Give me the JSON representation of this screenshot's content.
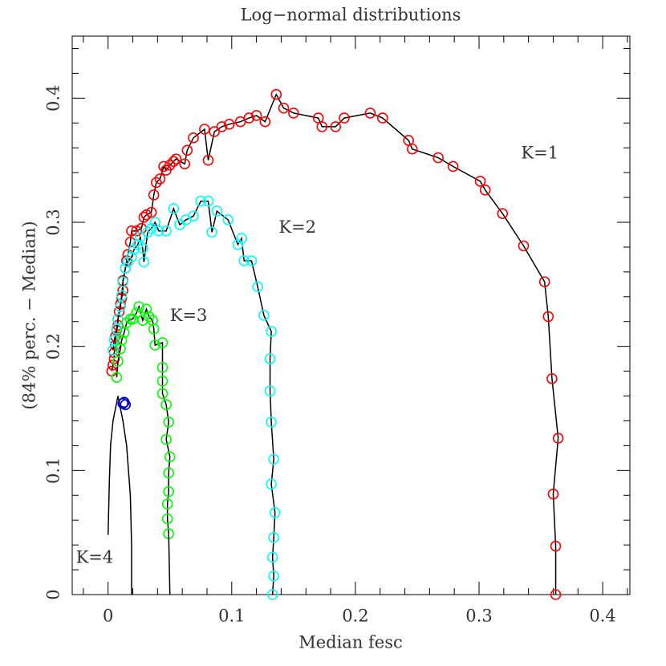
{
  "chart_data": {
    "type": "scatter",
    "title": "Log−normal distributions",
    "xlabel": "Median fesc",
    "ylabel": "(84% perc. − Median)",
    "xlim": [
      -0.029,
      0.422
    ],
    "ylim": [
      0,
      0.45
    ],
    "xticks": [
      0,
      0.1,
      0.2,
      0.3,
      0.4
    ],
    "yticks": [
      0,
      0.1,
      0.2,
      0.3,
      0.4
    ],
    "xminor": [
      -0.02,
      0.02,
      0.04,
      0.06,
      0.08,
      0.12,
      0.14,
      0.16,
      0.18,
      0.22,
      0.24,
      0.26,
      0.28,
      0.32,
      0.34,
      0.36,
      0.38,
      0.42
    ],
    "yminor": [
      0.02,
      0.04,
      0.06,
      0.08,
      0.12,
      0.14,
      0.16,
      0.18,
      0.22,
      0.24,
      0.26,
      0.28,
      0.32,
      0.34,
      0.36,
      0.38,
      0.42,
      0.44
    ],
    "series": [
      {
        "name": "K=1",
        "label_x": 0.334,
        "label_y": 0.355,
        "color": "#ff0000",
        "line_color": "#000000",
        "markers": true,
        "x": [
          0.003,
          0.004,
          0.005,
          0.005,
          0.006,
          0.006,
          0.007,
          0.008,
          0.008,
          0.009,
          0.01,
          0.011,
          0.012,
          0.012,
          0.014,
          0.015,
          0.016,
          0.018,
          0.019,
          0.023,
          0.027,
          0.029,
          0.031,
          0.035,
          0.037,
          0.039,
          0.042,
          0.045,
          0.047,
          0.05,
          0.053,
          0.055,
          0.062,
          0.064,
          0.069,
          0.078,
          0.081,
          0.086,
          0.092,
          0.098,
          0.107,
          0.114,
          0.12,
          0.127,
          0.136,
          0.142,
          0.15,
          0.17,
          0.173,
          0.184,
          0.191,
          0.212,
          0.222,
          0.243,
          0.246,
          0.267,
          0.279,
          0.301,
          0.305,
          0.319,
          0.336,
          0.353,
          0.356,
          0.359,
          0.364,
          0.36,
          0.362,
          0.362
        ],
        "y": [
          0.18,
          0.185,
          0.19,
          0.195,
          0.201,
          0.208,
          0.213,
          0.217,
          0.222,
          0.228,
          0.234,
          0.239,
          0.245,
          0.253,
          0.263,
          0.269,
          0.274,
          0.284,
          0.293,
          0.293,
          0.295,
          0.304,
          0.306,
          0.308,
          0.322,
          0.332,
          0.335,
          0.345,
          0.342,
          0.346,
          0.349,
          0.351,
          0.347,
          0.358,
          0.368,
          0.375,
          0.35,
          0.373,
          0.377,
          0.379,
          0.381,
          0.384,
          0.386,
          0.381,
          0.403,
          0.392,
          0.388,
          0.384,
          0.377,
          0.377,
          0.384,
          0.388,
          0.384,
          0.366,
          0.359,
          0.352,
          0.345,
          0.333,
          0.326,
          0.307,
          0.281,
          0.252,
          0.224,
          0.174,
          0.126,
          0.081,
          0.039,
          0.0
        ]
      },
      {
        "name": "K=2",
        "label_x": 0.138,
        "label_y": 0.295,
        "color": "#00ffff",
        "line_color": "#000000",
        "markers": true,
        "x": [
          0.004,
          0.005,
          0.007,
          0.008,
          0.01,
          0.011,
          0.012,
          0.014,
          0.016,
          0.019,
          0.021,
          0.024,
          0.026,
          0.028,
          0.029,
          0.032,
          0.035,
          0.038,
          0.041,
          0.047,
          0.053,
          0.058,
          0.063,
          0.069,
          0.075,
          0.081,
          0.084,
          0.088,
          0.097,
          0.105,
          0.108,
          0.11,
          0.116,
          0.121,
          0.126,
          0.132,
          0.131,
          0.131,
          0.132,
          0.134,
          0.132,
          0.135,
          0.134,
          0.133,
          0.134,
          0.133
        ],
        "y": [
          0.197,
          0.205,
          0.214,
          0.222,
          0.232,
          0.241,
          0.252,
          0.263,
          0.268,
          0.272,
          0.278,
          0.282,
          0.288,
          0.279,
          0.268,
          0.292,
          0.295,
          0.3,
          0.293,
          0.293,
          0.311,
          0.298,
          0.302,
          0.305,
          0.317,
          0.317,
          0.292,
          0.309,
          0.302,
          0.282,
          0.287,
          0.269,
          0.269,
          0.248,
          0.225,
          0.212,
          0.19,
          0.164,
          0.139,
          0.109,
          0.089,
          0.066,
          0.046,
          0.03,
          0.015,
          0.0
        ]
      },
      {
        "name": "K=3",
        "label_x": 0.05,
        "label_y": 0.224,
        "color": "#00ff00",
        "line_color": "#000000",
        "markers": true,
        "x": [
          0.007,
          0.008,
          0.01,
          0.011,
          0.013,
          0.015,
          0.018,
          0.02,
          0.023,
          0.025,
          0.028,
          0.031,
          0.033,
          0.036,
          0.037,
          0.038,
          0.044,
          0.044,
          0.044,
          0.044,
          0.047,
          0.049,
          0.047,
          0.05,
          0.049,
          0.049,
          0.048,
          0.048,
          0.049
        ],
        "y": [
          0.175,
          0.188,
          0.198,
          0.205,
          0.211,
          0.219,
          0.222,
          0.222,
          0.227,
          0.232,
          0.221,
          0.23,
          0.224,
          0.221,
          0.214,
          0.201,
          0.203,
          0.183,
          0.172,
          0.162,
          0.153,
          0.139,
          0.125,
          0.111,
          0.098,
          0.083,
          0.073,
          0.061,
          0.049
        ]
      },
      {
        "line_color": "#000000",
        "markers": false,
        "x": [
          0.049,
          0.05
        ],
        "y": [
          0.049,
          0.0
        ]
      },
      {
        "name": "K=4",
        "label_x": -0.026,
        "label_y": 0.029,
        "line_color": "#000000",
        "markers": false,
        "x": [
          0.0,
          0.001,
          0.002,
          0.004,
          0.006,
          0.008,
          0.01,
          0.012,
          0.015,
          0.018,
          0.019,
          0.019
        ],
        "y": [
          0.048,
          0.09,
          0.12,
          0.14,
          0.15,
          0.16,
          0.15,
          0.14,
          0.12,
          0.08,
          0.04,
          0.0
        ]
      },
      {
        "color": "#0000cc",
        "markers": true,
        "x": [
          0.012,
          0.013,
          0.014
        ],
        "y": [
          0.154,
          0.155,
          0.153
        ]
      }
    ]
  }
}
